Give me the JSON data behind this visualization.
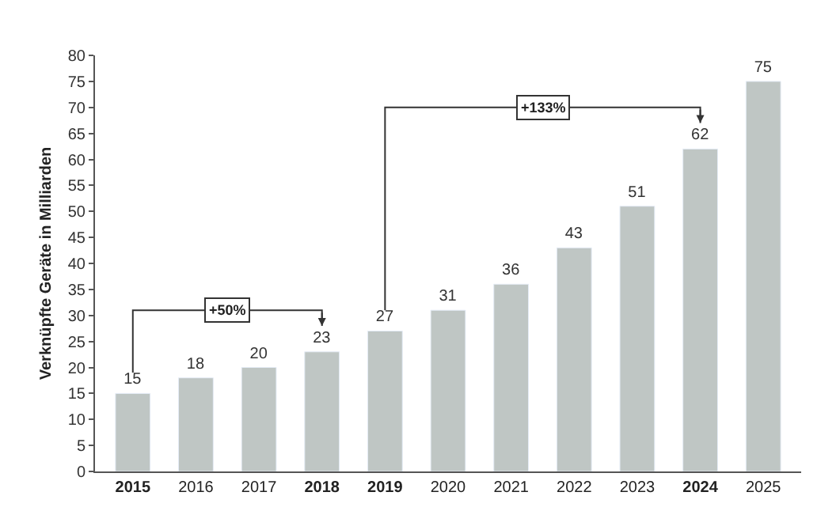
{
  "chart_data": {
    "type": "bar",
    "ylabel": "Verknüpfte Geräte in Milliarden",
    "categories": [
      "2015",
      "2016",
      "2017",
      "2018",
      "2019",
      "2020",
      "2021",
      "2022",
      "2023",
      "2024",
      "2025"
    ],
    "values": [
      15,
      18,
      20,
      23,
      27,
      31,
      36,
      43,
      51,
      62,
      75
    ],
    "color": "#bfc6c4",
    "ylim": [
      0,
      80
    ],
    "yticks": [
      0,
      5,
      10,
      15,
      20,
      25,
      30,
      35,
      40,
      45,
      50,
      55,
      60,
      65,
      70,
      75,
      80
    ],
    "legend": false,
    "data_labels": true,
    "annotations": [
      "+50%",
      "+133%"
    ]
  }
}
